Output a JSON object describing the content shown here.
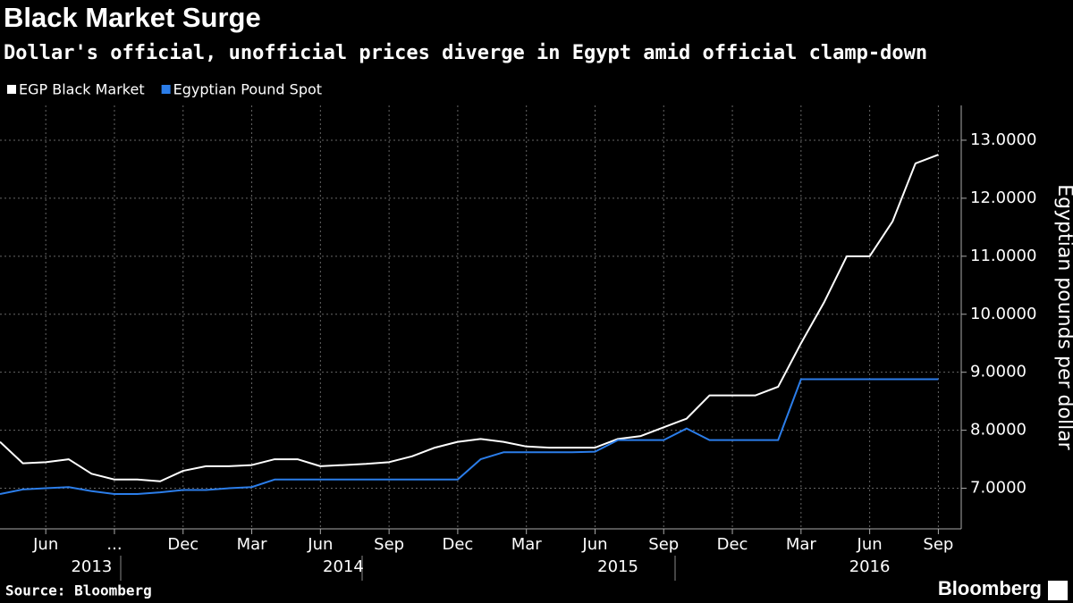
{
  "chart_data": {
    "type": "line",
    "title": "Black Market Surge",
    "subtitle": "Dollar's official, unofficial prices diverge in Egypt amid official clamp-down",
    "y_axis_label": "Egyptian pounds per dollar",
    "source": "Source: Bloomberg",
    "brand": "Bloomberg",
    "x": [
      "2013-04",
      "2013-05",
      "2013-06",
      "2013-07",
      "2013-08",
      "2013-09",
      "2013-10",
      "2013-11",
      "2013-12",
      "2014-01",
      "2014-02",
      "2014-03",
      "2014-04",
      "2014-05",
      "2014-06",
      "2014-07",
      "2014-08",
      "2014-09",
      "2014-10",
      "2014-11",
      "2014-12",
      "2015-01",
      "2015-02",
      "2015-03",
      "2015-04",
      "2015-05",
      "2015-06",
      "2015-07",
      "2015-08",
      "2015-09",
      "2015-10",
      "2015-11",
      "2015-12",
      "2016-01",
      "2016-02",
      "2016-03",
      "2016-04",
      "2016-05",
      "2016-06",
      "2016-07",
      "2016-08",
      "2016-09"
    ],
    "series": [
      {
        "name": "EGP Black Market",
        "color": "#ffffff",
        "values": [
          7.8,
          7.43,
          7.45,
          7.5,
          7.25,
          7.15,
          7.15,
          7.12,
          7.3,
          7.38,
          7.38,
          7.4,
          7.5,
          7.5,
          7.38,
          7.4,
          7.42,
          7.45,
          7.55,
          7.7,
          7.8,
          7.85,
          7.8,
          7.72,
          7.7,
          7.7,
          7.7,
          7.85,
          7.9,
          8.05,
          8.2,
          8.6,
          8.6,
          8.6,
          8.75,
          9.5,
          10.2,
          11.0,
          11.0,
          11.6,
          12.6,
          12.75
        ]
      },
      {
        "name": "Egyptian Pound Spot",
        "color": "#2b7de9",
        "values": [
          6.9,
          6.98,
          7.0,
          7.02,
          6.95,
          6.9,
          6.9,
          6.93,
          6.97,
          6.97,
          7.0,
          7.02,
          7.15,
          7.15,
          7.15,
          7.15,
          7.15,
          7.15,
          7.15,
          7.15,
          7.15,
          7.5,
          7.62,
          7.62,
          7.62,
          7.62,
          7.63,
          7.83,
          7.83,
          7.83,
          8.03,
          7.83,
          7.83,
          7.83,
          7.83,
          8.88,
          8.88,
          8.88,
          8.88,
          8.88,
          8.88,
          8.88
        ]
      }
    ],
    "xlim": [
      "2013-04",
      "2016-10"
    ],
    "xticks": [
      {
        "value": "2013-06",
        "label": "Jun"
      },
      {
        "value": "2013-09",
        "label": "..."
      },
      {
        "value": "2013-12",
        "label": "Dec"
      },
      {
        "value": "2014-03",
        "label": "Mar"
      },
      {
        "value": "2014-06",
        "label": "Jun"
      },
      {
        "value": "2014-09",
        "label": "Sep"
      },
      {
        "value": "2014-12",
        "label": "Dec"
      },
      {
        "value": "2015-03",
        "label": "Mar"
      },
      {
        "value": "2015-06",
        "label": "Jun"
      },
      {
        "value": "2015-09",
        "label": "Sep"
      },
      {
        "value": "2015-12",
        "label": "Dec"
      },
      {
        "value": "2016-03",
        "label": "Mar"
      },
      {
        "value": "2016-06",
        "label": "Jun"
      },
      {
        "value": "2016-09",
        "label": "Sep"
      }
    ],
    "year_labels": [
      {
        "value": "2013-08",
        "label": "2013"
      },
      {
        "value": "2014-07",
        "label": "2014"
      },
      {
        "value": "2015-07",
        "label": "2015"
      },
      {
        "value": "2016-06",
        "label": "2016"
      }
    ],
    "ylim": [
      6.3,
      13.6
    ],
    "yticks": [
      {
        "value": 7,
        "label": "7.0000"
      },
      {
        "value": 8,
        "label": "8.0000"
      },
      {
        "value": 9,
        "label": "9.0000"
      },
      {
        "value": 10,
        "label": "10.0000"
      },
      {
        "value": 11,
        "label": "11.0000"
      },
      {
        "value": 12,
        "label": "12.0000"
      },
      {
        "value": 13,
        "label": "13.0000"
      }
    ],
    "grid": true
  }
}
